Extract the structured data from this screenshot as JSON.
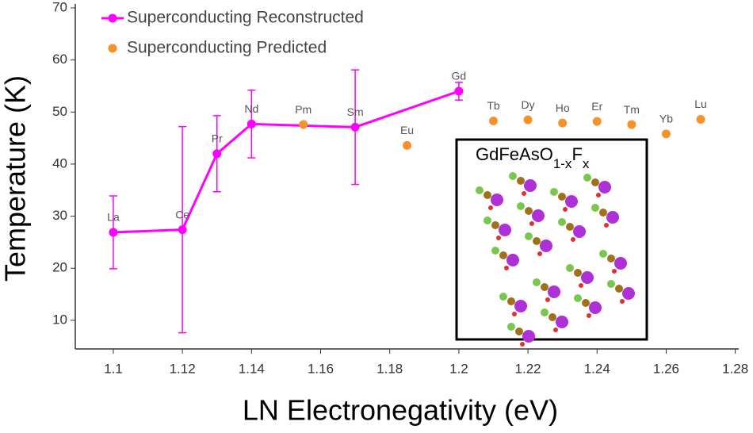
{
  "chart_data": {
    "type": "scatter",
    "x_label": "LN Electronegativity (eV)",
    "y_label": "Temperature (K)",
    "xlim": [
      1.089,
      1.281
    ],
    "ylim": [
      4.5,
      70
    ],
    "xticks": [
      1.1,
      1.12,
      1.14,
      1.16,
      1.18,
      1.2,
      1.22,
      1.24,
      1.26,
      1.28
    ],
    "yticks": [
      10,
      20,
      30,
      40,
      50,
      60,
      70
    ],
    "grid": false,
    "legend": "upper left",
    "series": [
      {
        "name": "Superconducting Reconstructed",
        "color": "#ff00ff",
        "line": true,
        "x": [
          1.1,
          1.12,
          1.13,
          1.14,
          1.17,
          1.2
        ],
        "values": [
          26.9,
          27.4,
          42,
          47.7,
          47.1,
          54
        ],
        "errors": [
          7,
          19.8,
          7.3,
          6.5,
          11,
          1.7
        ],
        "labels": [
          "La",
          "Ce",
          "Pr",
          "Nd",
          "Sm",
          "Gd"
        ]
      },
      {
        "name": "Superconducting Predicted",
        "color": "#f7922a",
        "line": false,
        "x": [
          1.155,
          1.185,
          1.21,
          1.22,
          1.23,
          1.24,
          1.25,
          1.26,
          1.27
        ],
        "values": [
          47.6,
          43.6,
          48.3,
          48.5,
          47.9,
          48.2,
          47.6,
          45.8,
          48.6
        ],
        "labels": [
          "Pm",
          "Eu",
          "Tb",
          "Dy",
          "Ho",
          "Er",
          "Tm",
          "Yb",
          "Lu"
        ]
      }
    ],
    "inset": {
      "title": [
        "GdFeAsO",
        "1-x",
        "F",
        "x"
      ]
    }
  }
}
